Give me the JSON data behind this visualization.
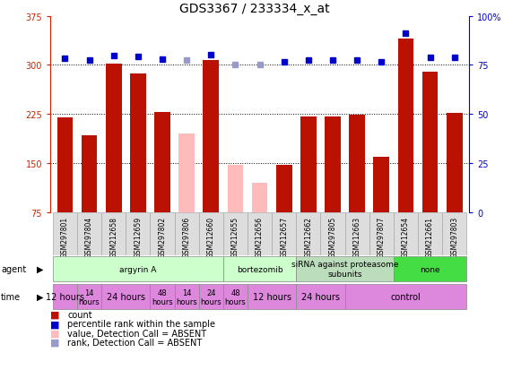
{
  "title": "GDS3367 / 233334_x_at",
  "samples": [
    "GSM297801",
    "GSM297804",
    "GSM212658",
    "GSM212659",
    "GSM297802",
    "GSM297806",
    "GSM212660",
    "GSM212655",
    "GSM212656",
    "GSM212657",
    "GSM212662",
    "GSM297805",
    "GSM212663",
    "GSM297807",
    "GSM212654",
    "GSM212661",
    "GSM297803"
  ],
  "count_values": [
    220,
    193,
    302,
    287,
    228,
    0,
    307,
    0,
    0,
    147,
    222,
    221,
    224,
    160,
    340,
    290,
    227
  ],
  "count_absent": [
    false,
    false,
    false,
    false,
    false,
    true,
    false,
    true,
    true,
    false,
    false,
    false,
    false,
    false,
    false,
    false,
    false
  ],
  "absent_values": [
    0,
    0,
    0,
    0,
    0,
    195,
    0,
    148,
    120,
    0,
    0,
    0,
    0,
    0,
    0,
    0,
    0
  ],
  "rank_values": [
    310,
    307,
    315,
    313,
    309,
    0,
    316,
    0,
    0,
    305,
    308,
    308,
    308,
    305,
    348,
    312,
    311
  ],
  "rank_absent": [
    false,
    false,
    false,
    false,
    false,
    true,
    false,
    true,
    true,
    false,
    false,
    false,
    false,
    false,
    false,
    false,
    false
  ],
  "absent_rank_values": [
    0,
    0,
    0,
    0,
    0,
    308,
    0,
    301,
    301,
    0,
    0,
    0,
    0,
    0,
    0,
    0,
    0
  ],
  "ylim": [
    75,
    375
  ],
  "yticks": [
    75,
    150,
    225,
    300,
    375
  ],
  "right_ylim": [
    0,
    100
  ],
  "right_yticks": [
    0,
    25,
    50,
    75,
    100
  ],
  "right_yticklabels": [
    "0",
    "25",
    "50",
    "75",
    "100%"
  ],
  "agent_groups": [
    {
      "label": "argyrin A",
      "start": 0,
      "end": 7,
      "color": "#ccffcc"
    },
    {
      "label": "bortezomib",
      "start": 7,
      "end": 10,
      "color": "#ccffcc"
    },
    {
      "label": "siRNA against proteasome\nsubunits",
      "start": 10,
      "end": 14,
      "color": "#bbddbb"
    },
    {
      "label": "none",
      "start": 14,
      "end": 17,
      "color": "#44dd44"
    }
  ],
  "time_groups": [
    {
      "label": "12 hours",
      "start": 0,
      "end": 1,
      "fontsize": 7
    },
    {
      "label": "14\nhours",
      "start": 1,
      "end": 2,
      "fontsize": 6
    },
    {
      "label": "24 hours",
      "start": 2,
      "end": 4,
      "fontsize": 7
    },
    {
      "label": "48\nhours",
      "start": 4,
      "end": 5,
      "fontsize": 6
    },
    {
      "label": "14\nhours",
      "start": 5,
      "end": 6,
      "fontsize": 6
    },
    {
      "label": "24\nhours",
      "start": 6,
      "end": 7,
      "fontsize": 6
    },
    {
      "label": "48\nhours",
      "start": 7,
      "end": 8,
      "fontsize": 6
    },
    {
      "label": "12 hours",
      "start": 8,
      "end": 10,
      "fontsize": 7
    },
    {
      "label": "24 hours",
      "start": 10,
      "end": 12,
      "fontsize": 7
    },
    {
      "label": "control",
      "start": 12,
      "end": 17,
      "fontsize": 7
    }
  ],
  "bar_color": "#bb1100",
  "absent_bar_color": "#ffbbbb",
  "rank_color": "#0000cc",
  "absent_rank_color": "#9999cc",
  "background_color": "#ffffff",
  "plot_bg": "#ffffff",
  "title_fontsize": 10,
  "grid_lines": [
    150,
    225,
    300
  ],
  "label_bg": "#cccccc",
  "time_color": "#dd88dd",
  "legend_items": [
    {
      "color": "#bb1100",
      "label": "count"
    },
    {
      "color": "#0000cc",
      "label": "percentile rank within the sample"
    },
    {
      "color": "#ffbbbb",
      "label": "value, Detection Call = ABSENT"
    },
    {
      "color": "#9999cc",
      "label": "rank, Detection Call = ABSENT"
    }
  ]
}
